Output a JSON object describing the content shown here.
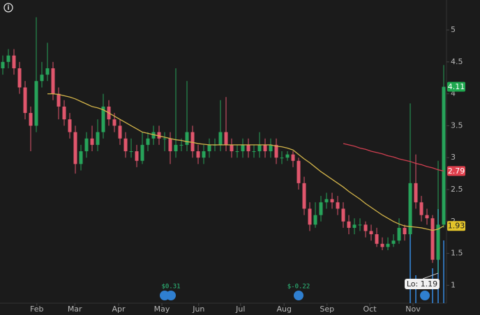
{
  "chart_data": {
    "type": "candlestick",
    "ylim": [
      0.72,
      5.47
    ],
    "yticks": [
      1,
      1.5,
      2,
      2.5,
      3,
      3.5,
      4,
      4.5,
      5
    ],
    "xticks": [
      {
        "value": 6.1,
        "label": "Feb"
      },
      {
        "value": 12.9,
        "label": "Mar"
      },
      {
        "value": 20.75,
        "label": "Apr"
      },
      {
        "value": 28.5,
        "label": "May"
      },
      {
        "value": 35.1,
        "label": "Jun"
      },
      {
        "value": 42.6,
        "label": "Jul"
      },
      {
        "value": 50.4,
        "label": "Aug"
      },
      {
        "value": 58.1,
        "label": "Sep"
      },
      {
        "value": 65.75,
        "label": "Oct"
      },
      {
        "value": 73.5,
        "label": "Nov"
      }
    ],
    "up_color": "#27a35a",
    "down_color": "#e0566c",
    "open": [
      4.4,
      4.5,
      4.6,
      4.4,
      4.1,
      3.7,
      3.5,
      4.2,
      4.3,
      4.4,
      4.0,
      3.8,
      3.6,
      3.4,
      2.9,
      3.1,
      3.3,
      3.2,
      3.4,
      3.8,
      3.6,
      3.5,
      3.3,
      3.1,
      3.1,
      2.95,
      3.2,
      3.3,
      3.4,
      3.3,
      3.3,
      3.1,
      3.2,
      3.2,
      3.4,
      3.1,
      3.0,
      3.1,
      3.2,
      3.2,
      3.4,
      3.2,
      3.1,
      3.1,
      3.2,
      3.1,
      3.1,
      3.2,
      3.1,
      3.2,
      3.0,
      3.0,
      3.05,
      2.95,
      2.6,
      2.2,
      1.95,
      2.1,
      2.3,
      2.35,
      2.3,
      2.2,
      2.0,
      1.9,
      1.95,
      1.95,
      1.85,
      1.8,
      1.65,
      1.6,
      1.65,
      1.7,
      1.9,
      1.8,
      2.6,
      2.3,
      2.1,
      2.05,
      1.4,
      1.95
    ],
    "high": [
      4.6,
      4.7,
      4.7,
      4.5,
      4.2,
      3.8,
      5.2,
      4.5,
      4.8,
      4.5,
      4.1,
      3.9,
      3.7,
      3.5,
      3.2,
      3.4,
      3.5,
      3.6,
      4.0,
      3.9,
      3.7,
      3.6,
      3.4,
      3.3,
      3.2,
      3.4,
      3.4,
      3.5,
      3.5,
      3.4,
      3.4,
      4.4,
      3.3,
      4.2,
      3.5,
      3.2,
      3.2,
      3.3,
      3.3,
      3.9,
      3.95,
      3.3,
      3.2,
      3.3,
      3.3,
      3.2,
      3.4,
      3.3,
      3.3,
      3.3,
      3.1,
      3.1,
      3.1,
      3.0,
      2.7,
      2.3,
      2.3,
      2.4,
      2.45,
      2.45,
      2.4,
      2.3,
      2.1,
      2.05,
      2.05,
      2.0,
      1.95,
      1.9,
      1.75,
      1.75,
      1.8,
      2.05,
      1.95,
      3.85,
      3.05,
      2.4,
      2.2,
      2.1,
      2.95,
      4.45
    ],
    "low": [
      4.3,
      4.4,
      4.3,
      4.0,
      3.6,
      3.1,
      3.4,
      4.1,
      4.2,
      3.9,
      3.6,
      3.5,
      3.3,
      2.75,
      2.8,
      3.0,
      3.1,
      3.1,
      3.3,
      3.5,
      3.4,
      3.2,
      3.0,
      3.0,
      2.85,
      2.9,
      3.1,
      3.2,
      3.2,
      3.1,
      2.9,
      3.0,
      3.1,
      3.1,
      3.0,
      2.9,
      2.9,
      3.0,
      3.1,
      3.1,
      3.1,
      3.0,
      3.0,
      3.0,
      3.0,
      3.0,
      3.0,
      3.0,
      3.0,
      2.9,
      2.9,
      2.95,
      2.85,
      2.5,
      2.1,
      1.85,
      1.9,
      2.0,
      2.2,
      2.2,
      2.1,
      1.9,
      1.8,
      1.8,
      1.85,
      1.75,
      1.7,
      1.6,
      1.55,
      1.55,
      1.6,
      1.65,
      1.7,
      1.75,
      2.2,
      2.0,
      1.95,
      1.35,
      1.19,
      1.9
    ],
    "close": [
      4.5,
      4.6,
      4.4,
      4.1,
      3.7,
      3.5,
      4.2,
      4.3,
      4.4,
      4.0,
      3.8,
      3.6,
      3.4,
      2.9,
      3.1,
      3.3,
      3.2,
      3.4,
      3.8,
      3.6,
      3.5,
      3.3,
      3.1,
      3.1,
      2.95,
      3.2,
      3.3,
      3.4,
      3.3,
      3.3,
      3.1,
      3.2,
      3.2,
      3.4,
      3.1,
      3.0,
      3.1,
      3.2,
      3.2,
      3.4,
      3.2,
      3.1,
      3.1,
      3.2,
      3.1,
      3.1,
      3.2,
      3.1,
      3.2,
      3.0,
      3.0,
      3.05,
      2.95,
      2.6,
      2.2,
      1.95,
      2.1,
      2.3,
      2.35,
      2.3,
      2.2,
      2.0,
      1.9,
      1.95,
      1.95,
      1.85,
      1.8,
      1.65,
      1.6,
      1.65,
      1.7,
      1.9,
      1.8,
      2.6,
      2.3,
      2.1,
      2.05,
      1.4,
      1.95,
      4.11
    ],
    "series": [
      {
        "color": "#d4b54a",
        "values": [
          null,
          null,
          null,
          null,
          null,
          null,
          null,
          null,
          4.0,
          4.0,
          3.99,
          3.97,
          3.95,
          3.92,
          3.88,
          3.84,
          3.8,
          3.78,
          3.75,
          3.7,
          3.65,
          3.6,
          3.55,
          3.5,
          3.45,
          3.4,
          3.38,
          3.36,
          3.34,
          3.32,
          3.3,
          3.28,
          3.27,
          3.25,
          3.24,
          3.22,
          3.21,
          3.2,
          3.2,
          3.2,
          3.2,
          3.2,
          3.2,
          3.2,
          3.2,
          3.2,
          3.2,
          3.2,
          3.2,
          3.18,
          3.17,
          3.15,
          3.12,
          3.05,
          2.98,
          2.92,
          2.85,
          2.78,
          2.72,
          2.66,
          2.6,
          2.54,
          2.47,
          2.41,
          2.35,
          2.28,
          2.22,
          2.16,
          2.1,
          2.05,
          2.0,
          1.96,
          1.93,
          1.92,
          1.91,
          1.9,
          1.88,
          1.86,
          1.88,
          1.93
        ]
      },
      {
        "color": "#cf3f50",
        "values": [
          null,
          null,
          null,
          null,
          null,
          null,
          null,
          null,
          null,
          null,
          null,
          null,
          null,
          null,
          null,
          null,
          null,
          null,
          null,
          null,
          null,
          null,
          null,
          null,
          null,
          null,
          null,
          null,
          null,
          null,
          null,
          null,
          null,
          null,
          null,
          null,
          null,
          null,
          null,
          null,
          null,
          null,
          null,
          null,
          null,
          null,
          null,
          null,
          null,
          null,
          null,
          null,
          null,
          null,
          null,
          null,
          null,
          null,
          null,
          null,
          null,
          3.22,
          3.2,
          3.18,
          3.15,
          3.13,
          3.1,
          3.08,
          3.06,
          3.03,
          3.01,
          2.98,
          2.96,
          2.94,
          2.91,
          2.89,
          2.86,
          2.84,
          2.81,
          2.79
        ]
      }
    ],
    "low_label": "Lo: 1.19",
    "earnings": [
      "$0.31",
      "$-0.22"
    ],
    "info_icon": "i"
  }
}
